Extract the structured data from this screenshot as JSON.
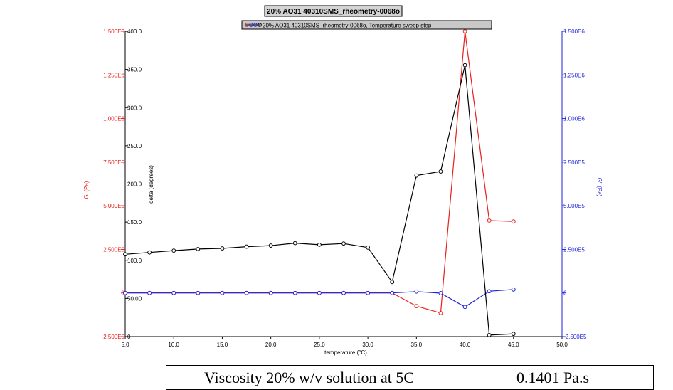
{
  "chart_data": {
    "type": "line",
    "title": "20% AO31 40310SMS_rheometry-0068o",
    "legend_text": "20% AO31 40310SMS_rheometry-0068o, Temperature sweep step",
    "xlabel": "temperature (°C)",
    "ylabel_left": "G' (Pa)",
    "ylabel_mid": "delta (degrees)",
    "ylabel_right": "G'' (Pa)",
    "x_ticks": [
      "5.0",
      "10.0",
      "15.0",
      "20.0",
      "25.0",
      "30.0",
      "35.0",
      "40.0",
      "45.0",
      "50.0"
    ],
    "xlim": [
      5,
      50
    ],
    "y_left_ticks": [
      "1.500E6",
      "1.250E6",
      "1.000E6",
      "7.500E5",
      "5.000E5",
      "2.500E5",
      "0",
      "-2.500E5"
    ],
    "y_left_lim": [
      -250000,
      1500000
    ],
    "y_mid_ticks": [
      "400.0",
      "350.0",
      "300.0",
      "250.0",
      "200.0",
      "150.0",
      "100.0",
      "50.00",
      "0"
    ],
    "y_mid_lim": [
      0,
      400
    ],
    "y_right_ticks": [
      "1.500E6",
      "1.250E6",
      "1.000E6",
      "7.500E5",
      "5.000E5",
      "2.500E5",
      "0",
      "-2.500E5"
    ],
    "y_right_lim": [
      -250000,
      1500000
    ],
    "x": [
      5.0,
      7.5,
      10.0,
      12.5,
      15.0,
      17.5,
      20.0,
      22.5,
      25.0,
      27.5,
      30.0,
      32.5,
      35.0,
      37.5,
      40.0,
      42.5,
      45.0
    ],
    "series": [
      {
        "axis": "left",
        "color": "#e8201c",
        "values": [
          0,
          0,
          0,
          0,
          0,
          0,
          0,
          0,
          0,
          0,
          0,
          0,
          -75000,
          -115000,
          1500000,
          415000,
          410000
        ]
      },
      {
        "axis": "mid",
        "color": "#000000",
        "values": [
          107.9,
          110.3,
          112.7,
          114.8,
          115.6,
          117.9,
          119.3,
          122.5,
          120.4,
          122.0,
          116.7,
          71.5,
          211.0,
          216.3,
          355.6,
          2.0,
          3.6
        ]
      },
      {
        "axis": "right",
        "color": "#1f22d8",
        "values": [
          0,
          0,
          0,
          0,
          0,
          0,
          0,
          0,
          0,
          0,
          0,
          0,
          8000,
          -1000,
          -80000,
          10000,
          20000
        ]
      }
    ]
  },
  "caption": {
    "label": "Viscosity 20% w/v solution at 5C",
    "value": "0.1401 Pa.s"
  }
}
